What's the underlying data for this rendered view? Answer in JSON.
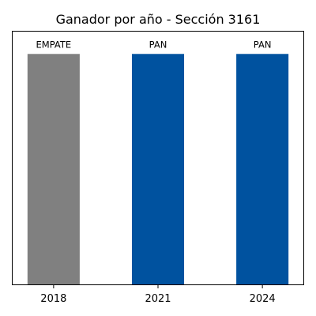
{
  "chart_data": {
    "type": "bar",
    "title": "Ganador por año - Sección 3161",
    "xlabel": "",
    "ylabel": "",
    "categories": [
      "2018",
      "2021",
      "2024"
    ],
    "values": [
      1,
      1,
      1
    ],
    "bar_labels": [
      "EMPATE",
      "PAN",
      "PAN"
    ],
    "colors": [
      "#808080",
      "#00529f",
      "#00529f"
    ],
    "ylim": [
      0,
      1.1
    ],
    "grid": false,
    "y_ticks_visible": false
  }
}
